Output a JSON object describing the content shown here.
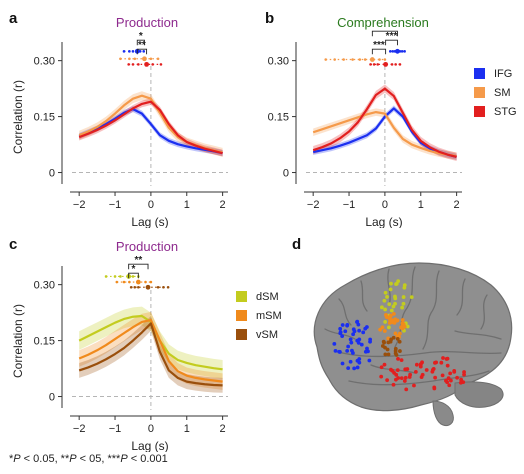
{
  "panels": {
    "a": {
      "letter": "a",
      "title": "Production"
    },
    "b": {
      "letter": "b",
      "title": "Comprehension"
    },
    "c": {
      "letter": "c",
      "title": "Production"
    },
    "d": {
      "letter": "d"
    }
  },
  "colors": {
    "production_title": "#8e2a8e",
    "comprehension_title": "#2a7a1e",
    "IFG": "#1b2ff0",
    "SM": "#f59a4a",
    "STG": "#e21f1f",
    "dSM": "#c3cc1f",
    "mSM": "#f08a1c",
    "vSM": "#9a4f0c"
  },
  "legend_ab": [
    {
      "label": "IFG",
      "color_key": "IFG"
    },
    {
      "label": "SM",
      "color_key": "SM"
    },
    {
      "label": "STG",
      "color_key": "STG"
    }
  ],
  "legend_c": [
    {
      "label": "dSM",
      "color_key": "dSM"
    },
    {
      "label": "mSM",
      "color_key": "mSM"
    },
    {
      "label": "vSM",
      "color_key": "vSM"
    }
  ],
  "footnote": {
    "s1": "*",
    "p1": "P",
    "t1": " < 0.05, **",
    "p2": "P",
    "t2": " < 05, ***",
    "p3": "P",
    "t3": " < 0.001"
  },
  "chart_data": [
    {
      "panel": "a",
      "type": "line",
      "title": "Production",
      "xlabel": "Lag (s)",
      "ylabel": "Correlation (r)",
      "xlim": [
        -2.2,
        2.15
      ],
      "ylim": [
        -0.02,
        0.35
      ],
      "xticks": [
        -2,
        -1,
        0,
        1,
        2
      ],
      "xtick_labels": [
        "−2",
        "−1",
        "0",
        "1",
        "2"
      ],
      "yticks": [
        0,
        0.15,
        0.3
      ],
      "ytick_labels": [
        "0",
        "0.15",
        "0.30"
      ],
      "x": [
        -2.0,
        -1.75,
        -1.5,
        -1.25,
        -1.0,
        -0.75,
        -0.5,
        -0.25,
        0.0,
        0.25,
        0.5,
        0.75,
        1.0,
        1.25,
        1.5,
        1.75,
        2.0
      ],
      "series": [
        {
          "name": "IFG",
          "color_key": "IFG",
          "values": [
            0.098,
            0.108,
            0.118,
            0.13,
            0.144,
            0.16,
            0.17,
            0.158,
            0.13,
            0.1,
            0.085,
            0.076,
            0.07,
            0.065,
            0.061,
            0.057,
            0.052
          ],
          "band": 0.008
        },
        {
          "name": "SM",
          "color_key": "SM",
          "values": [
            0.1,
            0.11,
            0.122,
            0.138,
            0.158,
            0.18,
            0.198,
            0.206,
            0.198,
            0.16,
            0.12,
            0.095,
            0.082,
            0.074,
            0.066,
            0.06,
            0.054
          ],
          "band": 0.012
        },
        {
          "name": "STG",
          "color_key": "STG",
          "values": [
            0.095,
            0.104,
            0.114,
            0.126,
            0.14,
            0.156,
            0.172,
            0.184,
            0.19,
            0.168,
            0.13,
            0.1,
            0.082,
            0.072,
            0.064,
            0.058,
            0.052
          ],
          "band": 0.009
        }
      ],
      "peak_markers": [
        {
          "series": "IFG",
          "y": 0.325,
          "x": -0.38,
          "pts": [
            -0.75,
            -0.6,
            -0.5,
            -0.3,
            -0.2
          ]
        },
        {
          "series": "SM",
          "y": 0.305,
          "x": -0.18,
          "pts": [
            -0.85,
            -0.6,
            -0.45,
            0.0,
            0.2
          ]
        },
        {
          "series": "STG",
          "y": 0.29,
          "x": -0.12,
          "pts": [
            -0.62,
            -0.5,
            -0.35,
            0.05,
            0.28
          ]
        }
      ],
      "significance": [
        {
          "label": "**",
          "x1": -0.38,
          "x2": -0.12,
          "level": 0
        },
        {
          "label": "*",
          "x1": -0.38,
          "x2": -0.18,
          "level": 1
        }
      ]
    },
    {
      "panel": "b",
      "type": "line",
      "title": "Comprehension",
      "xlabel": "Lag (s)",
      "ylabel": "",
      "xlim": [
        -2.2,
        2.15
      ],
      "ylim": [
        -0.02,
        0.35
      ],
      "xticks": [
        -2,
        -1,
        0,
        1,
        2
      ],
      "xtick_labels": [
        "−2",
        "−1",
        "0",
        "1",
        "2"
      ],
      "yticks": [
        0,
        0.15,
        0.3
      ],
      "ytick_labels": [
        "0",
        "0.15",
        "0.30"
      ],
      "x": [
        -2.0,
        -1.75,
        -1.5,
        -1.25,
        -1.0,
        -0.75,
        -0.5,
        -0.25,
        0.0,
        0.25,
        0.5,
        0.75,
        1.0,
        1.25,
        1.5,
        1.75,
        2.0
      ],
      "series": [
        {
          "name": "IFG",
          "color_key": "IFG",
          "values": [
            0.055,
            0.06,
            0.065,
            0.072,
            0.08,
            0.09,
            0.1,
            0.118,
            0.15,
            0.172,
            0.15,
            0.11,
            0.08,
            0.065,
            0.055,
            0.048,
            0.042
          ],
          "band": 0.008
        },
        {
          "name": "SM",
          "color_key": "SM",
          "values": [
            0.108,
            0.116,
            0.124,
            0.132,
            0.14,
            0.148,
            0.156,
            0.162,
            0.158,
            0.12,
            0.09,
            0.075,
            0.066,
            0.058,
            0.052,
            0.048,
            0.044
          ],
          "band": 0.01
        },
        {
          "name": "STG",
          "color_key": "STG",
          "values": [
            0.06,
            0.068,
            0.078,
            0.092,
            0.11,
            0.135,
            0.17,
            0.208,
            0.225,
            0.205,
            0.16,
            0.115,
            0.085,
            0.068,
            0.056,
            0.048,
            0.042
          ],
          "band": 0.011
        }
      ],
      "peak_markers": [
        {
          "series": "SM",
          "y": 0.303,
          "x": -0.35,
          "pts": [
            -1.65,
            -1.4,
            -1.15,
            -0.9,
            -0.7,
            -0.55,
            -0.15,
            0.0
          ]
        },
        {
          "series": "IFG",
          "y": 0.325,
          "x": 0.35,
          "pts": [
            0.15,
            0.22,
            0.28,
            0.42,
            0.48,
            0.55
          ]
        },
        {
          "series": "STG",
          "y": 0.29,
          "x": 0.02,
          "pts": [
            -0.4,
            -0.3,
            -0.2,
            0.2,
            0.3,
            0.42
          ]
        }
      ],
      "significance": [
        {
          "label": "***",
          "x1": -0.35,
          "x2": 0.02,
          "level": 0
        },
        {
          "label": "***",
          "x1": 0.02,
          "x2": 0.35,
          "level": 1
        },
        {
          "label": "***",
          "x1": -0.35,
          "x2": 0.35,
          "level": 2
        }
      ]
    },
    {
      "panel": "c",
      "type": "line",
      "title": "Production",
      "xlabel": "Lag (s)",
      "ylabel": "Correlation (r)",
      "xlim": [
        -2.2,
        2.15
      ],
      "ylim": [
        -0.02,
        0.35
      ],
      "xticks": [
        -2,
        -1,
        0,
        1,
        2
      ],
      "xtick_labels": [
        "−2",
        "−1",
        "0",
        "1",
        "2"
      ],
      "yticks": [
        0,
        0.15,
        0.3
      ],
      "ytick_labels": [
        "0",
        "0.15",
        "0.30"
      ],
      "x": [
        -2.0,
        -1.75,
        -1.5,
        -1.25,
        -1.0,
        -0.75,
        -0.5,
        -0.25,
        0.0,
        0.25,
        0.5,
        0.75,
        1.0,
        1.25,
        1.5,
        1.75,
        2.0
      ],
      "series": [
        {
          "name": "dSM",
          "color_key": "dSM",
          "values": [
            0.15,
            0.162,
            0.174,
            0.186,
            0.198,
            0.208,
            0.214,
            0.216,
            0.2,
            0.15,
            0.115,
            0.098,
            0.09,
            0.084,
            0.08,
            0.076,
            0.073
          ],
          "band": 0.025
        },
        {
          "name": "mSM",
          "color_key": "mSM",
          "values": [
            0.102,
            0.112,
            0.124,
            0.138,
            0.154,
            0.17,
            0.186,
            0.2,
            0.205,
            0.15,
            0.095,
            0.068,
            0.056,
            0.05,
            0.046,
            0.043,
            0.04
          ],
          "band": 0.022
        },
        {
          "name": "vSM",
          "color_key": "vSM",
          "values": [
            0.07,
            0.078,
            0.088,
            0.1,
            0.114,
            0.13,
            0.15,
            0.172,
            0.196,
            0.12,
            0.07,
            0.05,
            0.04,
            0.036,
            0.033,
            0.031,
            0.03
          ],
          "band": 0.02
        }
      ],
      "peak_markers": [
        {
          "series": "dSM",
          "y": 0.322,
          "x": -0.62,
          "pts": [
            -1.25,
            -1.0,
            -0.85,
            -0.5,
            -0.35
          ]
        },
        {
          "series": "mSM",
          "y": 0.307,
          "x": -0.35,
          "pts": [
            -0.95,
            -0.75,
            -0.6,
            -0.15,
            0.0
          ]
        },
        {
          "series": "vSM",
          "y": 0.293,
          "x": -0.08,
          "pts": [
            -0.55,
            -0.45,
            -0.35,
            0.2,
            0.35,
            0.48
          ]
        }
      ],
      "significance": [
        {
          "label": "*",
          "x1": -0.62,
          "x2": -0.35,
          "level": 0
        },
        {
          "label": "**",
          "x1": -0.62,
          "x2": -0.08,
          "level": 1
        }
      ]
    }
  ]
}
